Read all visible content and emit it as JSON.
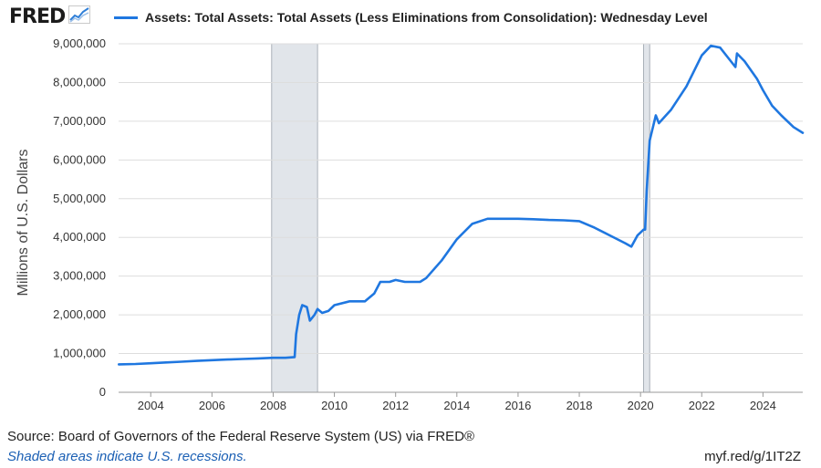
{
  "header": {
    "logo_text": "FRED",
    "logo_icon": "trend-line-icon"
  },
  "footer": {
    "source": "Source: Board of Governors of the Federal Reserve System (US) via FRED®",
    "recession_note": "Shaded areas indicate U.S. recessions.",
    "short_link": "myf.red/g/1IT2Z"
  },
  "colors": {
    "series": "#1f77e0",
    "recession": "#e1e5ea",
    "grid": "#dddddd"
  },
  "chart_data": {
    "type": "line",
    "title": "",
    "xlabel": "",
    "ylabel": "Millions of U.S. Dollars",
    "xlim": [
      2002.95,
      2025.3
    ],
    "ylim": [
      0,
      9000000
    ],
    "x_ticks": [
      2004,
      2006,
      2008,
      2010,
      2012,
      2014,
      2016,
      2018,
      2020,
      2022,
      2024
    ],
    "y_ticks": [
      {
        "value": 0,
        "label": "0"
      },
      {
        "value": 1000000,
        "label": "1,000,000"
      },
      {
        "value": 2000000,
        "label": "2,000,000"
      },
      {
        "value": 3000000,
        "label": "3,000,000"
      },
      {
        "value": 4000000,
        "label": "4,000,000"
      },
      {
        "value": 5000000,
        "label": "5,000,000"
      },
      {
        "value": 6000000,
        "label": "6,000,000"
      },
      {
        "value": 7000000,
        "label": "7,000,000"
      },
      {
        "value": 8000000,
        "label": "8,000,000"
      },
      {
        "value": 9000000,
        "label": "9,000,000"
      }
    ],
    "grid": true,
    "legend": "top",
    "recessions": [
      [
        2007.95,
        2009.45
      ],
      [
        2020.1,
        2020.3
      ]
    ],
    "series": [
      {
        "name": "Assets: Total Assets: Total Assets (Less Eliminations from Consolidation): Wednesday Level",
        "points": [
          [
            2002.96,
            720000
          ],
          [
            2003.5,
            730000
          ],
          [
            2004.0,
            750000
          ],
          [
            2004.5,
            770000
          ],
          [
            2005.0,
            790000
          ],
          [
            2005.5,
            810000
          ],
          [
            2006.0,
            830000
          ],
          [
            2006.5,
            845000
          ],
          [
            2007.0,
            860000
          ],
          [
            2007.5,
            875000
          ],
          [
            2008.0,
            890000
          ],
          [
            2008.4,
            890000
          ],
          [
            2008.7,
            910000
          ],
          [
            2008.75,
            1500000
          ],
          [
            2008.85,
            2000000
          ],
          [
            2008.95,
            2250000
          ],
          [
            2009.1,
            2200000
          ],
          [
            2009.2,
            1850000
          ],
          [
            2009.35,
            2000000
          ],
          [
            2009.45,
            2150000
          ],
          [
            2009.6,
            2050000
          ],
          [
            2009.8,
            2100000
          ],
          [
            2010.0,
            2250000
          ],
          [
            2010.5,
            2350000
          ],
          [
            2011.0,
            2350000
          ],
          [
            2011.3,
            2550000
          ],
          [
            2011.5,
            2850000
          ],
          [
            2011.8,
            2850000
          ],
          [
            2012.0,
            2900000
          ],
          [
            2012.3,
            2850000
          ],
          [
            2012.8,
            2850000
          ],
          [
            2013.0,
            2950000
          ],
          [
            2013.5,
            3400000
          ],
          [
            2014.0,
            3950000
          ],
          [
            2014.5,
            4350000
          ],
          [
            2015.0,
            4480000
          ],
          [
            2015.5,
            4480000
          ],
          [
            2016.0,
            4480000
          ],
          [
            2016.5,
            4470000
          ],
          [
            2017.0,
            4450000
          ],
          [
            2017.5,
            4440000
          ],
          [
            2018.0,
            4420000
          ],
          [
            2018.5,
            4250000
          ],
          [
            2019.0,
            4050000
          ],
          [
            2019.5,
            3850000
          ],
          [
            2019.7,
            3760000
          ],
          [
            2019.9,
            4050000
          ],
          [
            2020.1,
            4200000
          ],
          [
            2020.15,
            4200000
          ],
          [
            2020.2,
            5200000
          ],
          [
            2020.3,
            6500000
          ],
          [
            2020.5,
            7150000
          ],
          [
            2020.6,
            6950000
          ],
          [
            2021.0,
            7300000
          ],
          [
            2021.5,
            7900000
          ],
          [
            2022.0,
            8700000
          ],
          [
            2022.3,
            8950000
          ],
          [
            2022.6,
            8900000
          ],
          [
            2022.9,
            8600000
          ],
          [
            2023.1,
            8400000
          ],
          [
            2023.15,
            8750000
          ],
          [
            2023.4,
            8550000
          ],
          [
            2023.8,
            8100000
          ],
          [
            2024.0,
            7800000
          ],
          [
            2024.3,
            7400000
          ],
          [
            2024.6,
            7150000
          ],
          [
            2025.0,
            6850000
          ],
          [
            2025.3,
            6700000
          ]
        ]
      }
    ]
  }
}
